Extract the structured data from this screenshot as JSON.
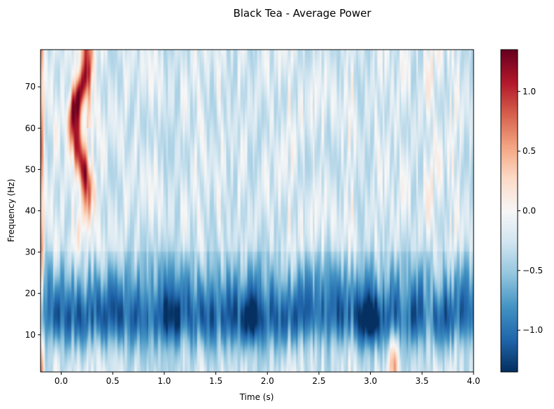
{
  "chart_data": {
    "type": "heatmap",
    "title": "Black Tea - Average Power",
    "xlabel": "Time (s)",
    "ylabel": "Frequency (Hz)",
    "xlim": [
      -0.2,
      4.0
    ],
    "ylim": [
      1,
      79
    ],
    "x_ticks": [
      0.0,
      0.5,
      1.0,
      1.5,
      2.0,
      2.5,
      3.0,
      3.5,
      4.0
    ],
    "x_tick_labels": [
      "0.0",
      "0.5",
      "1.0",
      "1.5",
      "2.0",
      "2.5",
      "3.0",
      "3.5",
      "4.0"
    ],
    "y_ticks": [
      10,
      20,
      30,
      40,
      50,
      60,
      70
    ],
    "y_tick_labels": [
      "10",
      "20",
      "30",
      "40",
      "50",
      "60",
      "70"
    ],
    "colormap": "RdBu_r",
    "colorbar": {
      "vmin": -1.35,
      "vmax": 1.35,
      "ticks": [
        -1.0,
        -0.5,
        0.0,
        0.5,
        1.0
      ],
      "tick_labels": [
        "−1.0",
        "−0.5",
        "0.0",
        "0.5",
        "1.0"
      ]
    },
    "features": [
      {
        "description": "broad negative band",
        "freq_range": [
          8,
          22
        ],
        "value": -0.9
      },
      {
        "description": "strongest negative spots",
        "times": [
          1.85,
          3.0
        ],
        "freq": 13,
        "value": -1.25
      },
      {
        "description": "positive ridge",
        "time_range": [
          0.05,
          0.3
        ],
        "freq_range": [
          35,
          79
        ],
        "value": 1.2
      },
      {
        "description": "positive spot",
        "time": 3.22,
        "freq_range": [
          1,
          8
        ],
        "value": 0.4
      },
      {
        "description": "positive edge",
        "time": -0.18,
        "value": 0.4
      },
      {
        "description": "background",
        "freq_range": [
          30,
          79
        ],
        "value": -0.25
      }
    ]
  }
}
